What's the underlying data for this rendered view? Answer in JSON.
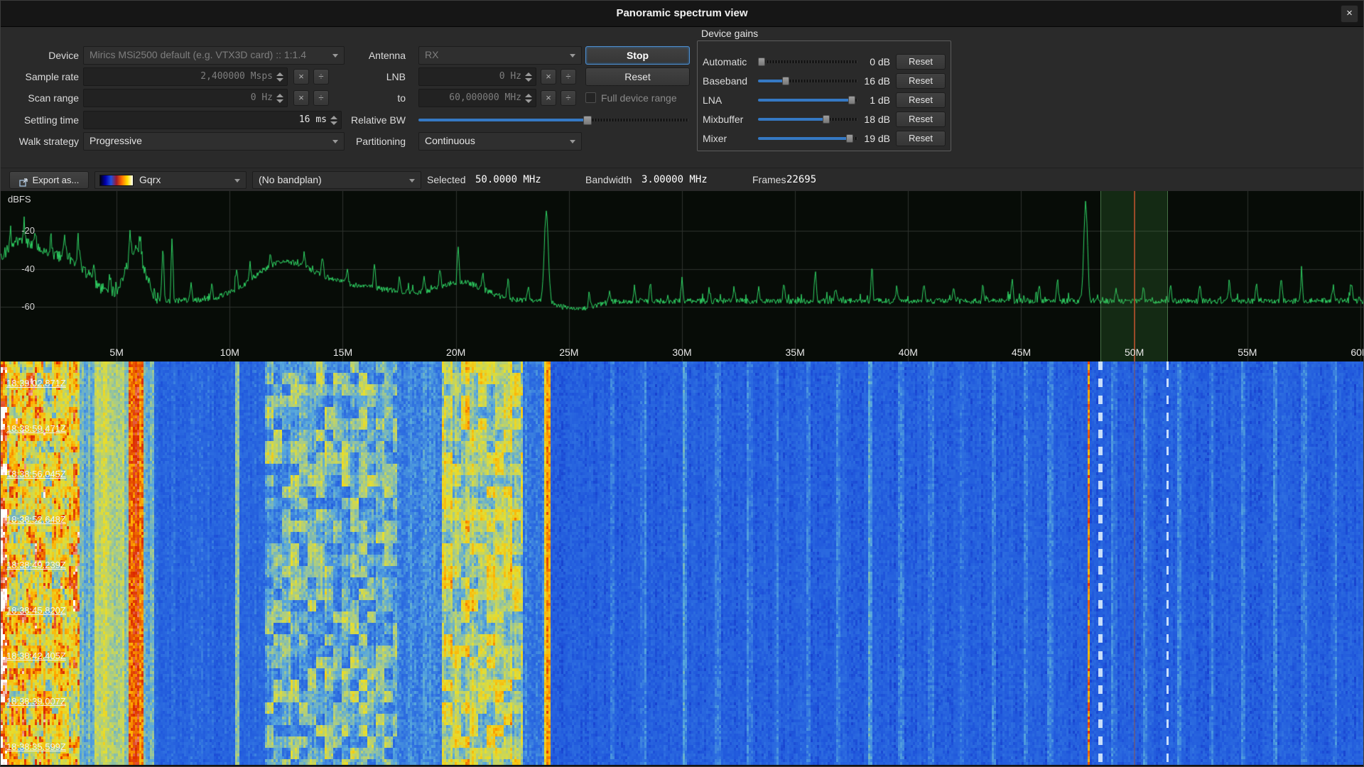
{
  "window": {
    "title": "Panoramic spectrum view",
    "close_label": "×"
  },
  "controls": {
    "device": {
      "label": "Device",
      "value": "Mirics MSi2500 default (e.g. VTX3D card) :: 1:1.4"
    },
    "antenna": {
      "label": "Antenna",
      "value": "RX"
    },
    "stop_button": "Stop",
    "reset_button": "Reset",
    "sample_rate": {
      "label": "Sample rate",
      "value": "2,400000 Msps"
    },
    "lnb": {
      "label": "LNB",
      "value": "0 Hz"
    },
    "scan_range": {
      "label": "Scan range",
      "from_value": "0 Hz",
      "to_label": "to",
      "to_value": "60,000000 MHz"
    },
    "full_device_range": {
      "label": "Full device range",
      "checked": false
    },
    "settling_time": {
      "label": "Settling time",
      "value": "16 ms"
    },
    "relative_bw": {
      "label": "Relative BW",
      "percent": 63
    },
    "walk_strategy": {
      "label": "Walk strategy",
      "value": "Progressive"
    },
    "partitioning": {
      "label": "Partitioning",
      "value": "Continuous"
    },
    "multiply_label": "×",
    "divide_label": "÷"
  },
  "device_gains": {
    "title": "Device gains",
    "reset_label": "Reset",
    "rows": [
      {
        "label": "Automatic",
        "value": "0 dB",
        "percent": 0
      },
      {
        "label": "Baseband",
        "value": "16 dB",
        "percent": 26
      },
      {
        "label": "LNA",
        "value": "1 dB",
        "percent": 98
      },
      {
        "label": "Mixbuffer",
        "value": "18 dB",
        "percent": 70
      },
      {
        "label": "Mixer",
        "value": "19 dB",
        "percent": 95
      }
    ]
  },
  "toolbar": {
    "export_button": "Export as...",
    "colormap": "Gqrx",
    "colormap_preview": [
      "#000010",
      "#0000b0",
      "#2050e0",
      "#a01828",
      "#ff7000",
      "#ffe000",
      "#ffffff"
    ],
    "bandplan": "(No bandplan)",
    "selected_label": "Selected",
    "selected_value": "50.0000 MHz",
    "bandwidth_label": "Bandwidth",
    "bandwidth_value": "3.00000 MHz",
    "frames_label": "Frames",
    "frames_value": "22695"
  },
  "spectrum": {
    "y_axis_label": "dBFS",
    "bg": "#070c07",
    "grid_color": "#2e332e",
    "trace_color": "#2fd464",
    "freq_start_mhz": 0,
    "freq_end_mhz": 60,
    "y_ticks": [
      {
        "db": -20,
        "label": "-20"
      },
      {
        "db": -40,
        "label": "-40"
      },
      {
        "db": -60,
        "label": "-60"
      }
    ],
    "x_ticks": [
      {
        "mhz": 5,
        "label": "5M"
      },
      {
        "mhz": 10,
        "label": "10M"
      },
      {
        "mhz": 15,
        "label": "15M"
      },
      {
        "mhz": 20,
        "label": "20M"
      },
      {
        "mhz": 25,
        "label": "25M"
      },
      {
        "mhz": 30,
        "label": "30M"
      },
      {
        "mhz": 35,
        "label": "35M"
      },
      {
        "mhz": 40,
        "label": "40M"
      },
      {
        "mhz": 45,
        "label": "45M"
      },
      {
        "mhz": 50,
        "label": "50M"
      },
      {
        "mhz": 55,
        "label": "55M"
      },
      {
        "mhz": 60,
        "label": "60M"
      }
    ],
    "selection": {
      "center_mhz": 50.0,
      "bandwidth_mhz": 3.0,
      "fill": "rgba(70,150,70,0.22)",
      "edge": "rgba(130,200,130,0.45)",
      "center_line": "#9a4a28"
    },
    "noise_floor_db": -57,
    "humps": [
      [
        0.6,
        0.8,
        16
      ],
      [
        1.8,
        1.2,
        12
      ],
      [
        3.1,
        0.7,
        10
      ],
      [
        5.85,
        0.4,
        26
      ],
      [
        12.3,
        1.3,
        16
      ],
      [
        15.0,
        2.5,
        8
      ],
      [
        20.3,
        1.0,
        9
      ],
      [
        24.0,
        0.09,
        48
      ],
      [
        25.3,
        0.8,
        -4
      ],
      [
        47.85,
        0.08,
        52
      ]
    ],
    "peaks": [
      [
        0.3,
        10
      ],
      [
        0.9,
        12
      ],
      [
        1.4,
        10
      ],
      [
        2.1,
        12
      ],
      [
        2.7,
        10
      ],
      [
        3.3,
        16
      ],
      [
        4.0,
        10
      ],
      [
        4.7,
        9
      ],
      [
        5.6,
        14
      ],
      [
        6.05,
        10
      ],
      [
        7.05,
        30
      ],
      [
        7.45,
        34
      ],
      [
        8.3,
        9
      ],
      [
        9.2,
        8
      ],
      [
        10.3,
        12
      ],
      [
        10.9,
        9
      ],
      [
        11.8,
        8
      ],
      [
        13.3,
        8
      ],
      [
        14.1,
        10
      ],
      [
        15.2,
        8
      ],
      [
        16.4,
        14
      ],
      [
        17.5,
        7
      ],
      [
        18.6,
        8
      ],
      [
        19.3,
        9
      ],
      [
        20.1,
        20
      ],
      [
        21.2,
        8
      ],
      [
        22.3,
        10
      ],
      [
        23.2,
        8
      ],
      [
        25.9,
        9
      ],
      [
        26.8,
        7
      ],
      [
        27.9,
        8
      ],
      [
        28.6,
        11
      ],
      [
        30.0,
        12
      ],
      [
        31.2,
        7
      ],
      [
        32.3,
        8
      ],
      [
        33.4,
        7
      ],
      [
        34.5,
        9
      ],
      [
        35.9,
        16
      ],
      [
        36.8,
        8
      ],
      [
        38.4,
        20
      ],
      [
        39.5,
        8
      ],
      [
        40.7,
        9
      ],
      [
        42.0,
        8
      ],
      [
        43.3,
        9
      ],
      [
        44.6,
        12
      ],
      [
        45.8,
        9
      ],
      [
        46.6,
        13
      ],
      [
        49.2,
        7
      ],
      [
        50.4,
        9
      ],
      [
        51.6,
        8
      ],
      [
        52.9,
        8
      ],
      [
        54.2,
        12
      ],
      [
        55.4,
        9
      ],
      [
        56.5,
        13
      ],
      [
        57.4,
        15
      ],
      [
        58.8,
        9
      ],
      [
        59.6,
        10
      ]
    ]
  },
  "waterfall": {
    "timestamps": [
      "18:39:02.871Z",
      "18:38:59.471Z",
      "18:38:56.045Z",
      "18:38:52.648Z",
      "18:38:49.239Z",
      "18:38:45.820Z",
      "18:38:42.405Z",
      "18:38:39.007Z",
      "18:38:35.599Z"
    ],
    "colormap_stops": [
      [
        0,
        "#000020"
      ],
      [
        0.18,
        "#0000a8"
      ],
      [
        0.34,
        "#2058dc"
      ],
      [
        0.44,
        "#2e6fe0"
      ],
      [
        0.54,
        "#58a8dc"
      ],
      [
        0.63,
        "#a8cc88"
      ],
      [
        0.72,
        "#e6de2e"
      ],
      [
        0.82,
        "#ffac00"
      ],
      [
        0.9,
        "#dc2800"
      ],
      [
        1,
        "#ffffff"
      ]
    ],
    "bands": [
      [
        0,
        0.2,
        0.92
      ],
      [
        0.2,
        3.4,
        0.74
      ],
      [
        3.4,
        4.0,
        0.56
      ],
      [
        4.0,
        5.3,
        0.66
      ],
      [
        5.3,
        5.5,
        0.58
      ],
      [
        5.5,
        6.2,
        0.86
      ],
      [
        6.2,
        6.7,
        0.55
      ],
      [
        6.7,
        11.6,
        0.4
      ],
      [
        11.6,
        17.4,
        0.56
      ],
      [
        17.4,
        19.4,
        0.48
      ],
      [
        19.4,
        23.0,
        0.66
      ],
      [
        23.0,
        23.9,
        0.46
      ],
      [
        23.9,
        24.2,
        0.78
      ],
      [
        24.2,
        61,
        0.375
      ]
    ],
    "blob_bands": [
      [
        0,
        3.4
      ],
      [
        11.6,
        17.4
      ],
      [
        19.4,
        23.0
      ]
    ],
    "lines": [
      [
        10.35,
        0.18
      ],
      [
        26.9,
        0.1
      ],
      [
        28.3,
        0.08
      ],
      [
        30.1,
        0.12
      ],
      [
        31.6,
        0.07
      ],
      [
        33.0,
        0.09
      ],
      [
        34.2,
        0.07
      ],
      [
        35.6,
        0.08
      ],
      [
        36.9,
        0.07
      ],
      [
        38.3,
        0.14
      ],
      [
        39.7,
        0.07
      ],
      [
        41.0,
        0.08
      ],
      [
        42.4,
        0.07
      ],
      [
        43.8,
        0.1
      ],
      [
        45.2,
        0.08
      ],
      [
        46.3,
        0.09
      ],
      [
        49.1,
        0.08
      ],
      [
        50.5,
        0.1
      ],
      [
        52.0,
        0.08
      ],
      [
        53.4,
        0.07
      ],
      [
        54.8,
        0.09
      ],
      [
        56.2,
        0.11
      ],
      [
        57.5,
        0.08
      ],
      [
        58.9,
        0.08
      ]
    ],
    "carriers": [
      [
        48.0,
        0.84
      ]
    ],
    "selection_edges": [
      48.5,
      51.5
    ]
  }
}
